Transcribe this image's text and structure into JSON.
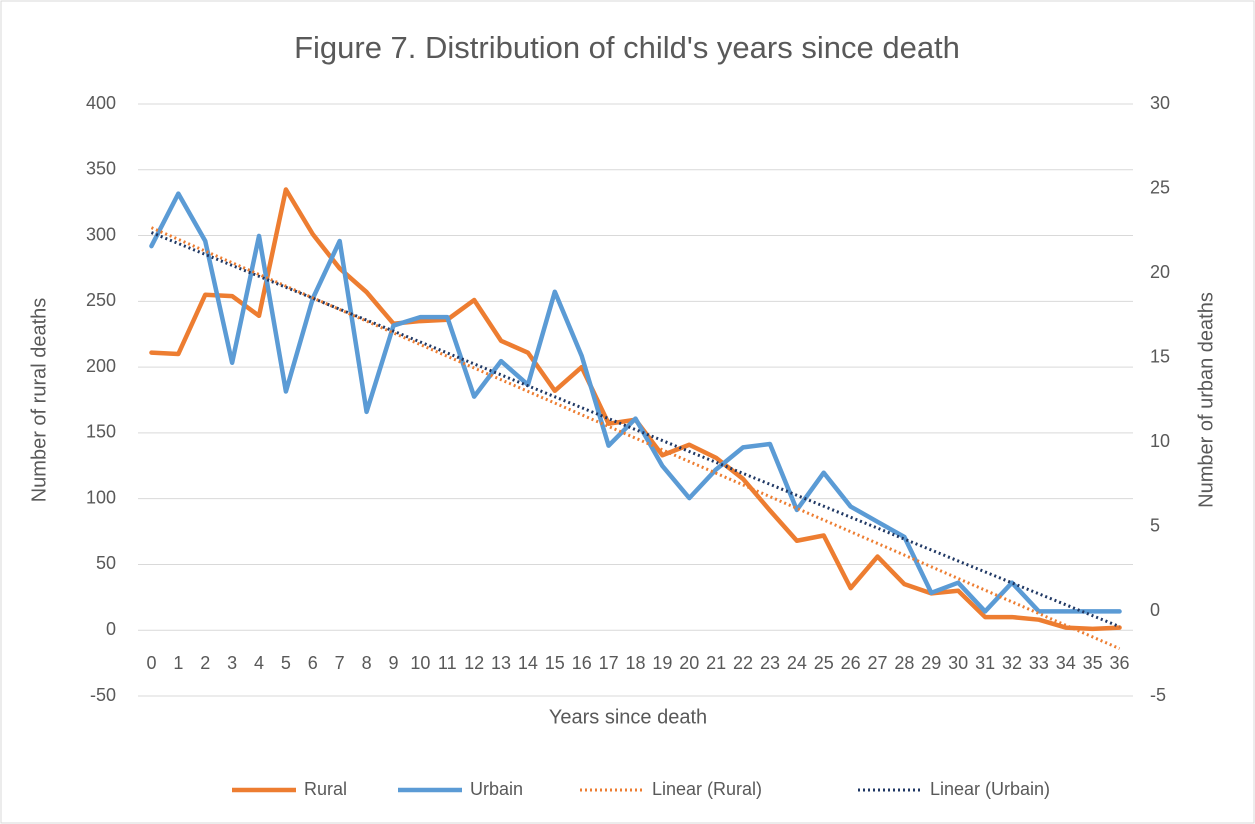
{
  "chart_data": {
    "type": "line",
    "title": "Figure 7. Distribution of child's years since death",
    "x_label": "Years since death",
    "y_label": "Number of rural deaths",
    "y2_label": "Number of urban deaths",
    "categories": [
      "0",
      "1",
      "2",
      "3",
      "4",
      "5",
      "6",
      "7",
      "8",
      "9",
      "10",
      "11",
      "12",
      "13",
      "14",
      "15",
      "16",
      "17",
      "18",
      "19",
      "20",
      "21",
      "22",
      "23",
      "24",
      "25",
      "26",
      "27",
      "28",
      "29",
      "30",
      "31",
      "32",
      "33",
      "34",
      "35",
      "36"
    ],
    "series": [
      {
        "name": "Rural",
        "color": "#ed7d31",
        "values": [
          211,
          210,
          255,
          254,
          239,
          335,
          301,
          275,
          257,
          233,
          235,
          236,
          251,
          220,
          211,
          182,
          200,
          157,
          160,
          133,
          141,
          131,
          115,
          91,
          68,
          72,
          32,
          56,
          35,
          28,
          30,
          10,
          10,
          8,
          2,
          1,
          2
        ]
      },
      {
        "name": "Urbain",
        "color": "#5b9bd5",
        "axis": "y2",
        "values": [
          21.6,
          24.7,
          21.9,
          14.7,
          22.2,
          13.0,
          18.5,
          21.9,
          11.8,
          16.9,
          17.4,
          17.4,
          12.7,
          14.8,
          13.4,
          18.9,
          15.1,
          9.8,
          11.4,
          8.6,
          6.7,
          8.4,
          9.7,
          9.9,
          6.0,
          8.2,
          6.2,
          5.3,
          4.4,
          1.1,
          1.7,
          0,
          1.7,
          0,
          0,
          0,
          0
        ]
      },
      {
        "name": "Linear (Rural)",
        "color": "#ed7d31",
        "dashed": true,
        "x": [
          0,
          36
        ],
        "values": [
          306,
          -14
        ]
      },
      {
        "name": "Linear (Urbain)",
        "color": "#203864",
        "dashed": true,
        "axis": "y2",
        "x": [
          0,
          36
        ],
        "values": [
          22.4,
          -0.9
        ]
      }
    ],
    "ylim": [
      -50,
      400
    ],
    "yticks": [
      -50,
      0,
      50,
      100,
      150,
      200,
      250,
      300,
      350,
      400
    ],
    "y2lim": [
      -5,
      30
    ],
    "y2ticks": [
      -5,
      0,
      5,
      10,
      15,
      20,
      25,
      30
    ],
    "grid": true,
    "legend": "bottom"
  }
}
